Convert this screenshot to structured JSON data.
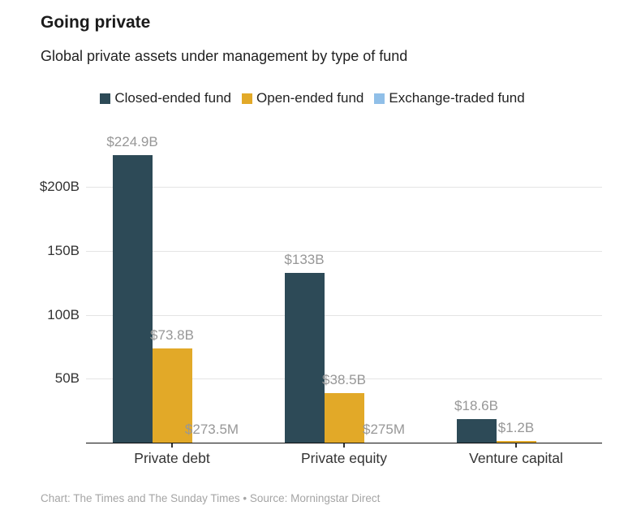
{
  "page": {
    "title": "Going private",
    "subtitle": "Global private assets under management by type of fund",
    "footer": "Chart: The Times and The Sunday Times • Source: Morningstar Direct"
  },
  "colors": {
    "closed_ended_fund": "#2d4a57",
    "open_ended_fund": "#e2a928",
    "exchange_traded_fund": "#90bfe8",
    "gridline": "#e4e4e4",
    "axis_line": "#0f0f0f",
    "value_label": "#979797",
    "axis_label": "#333333",
    "footer_text": "#a5a5a5"
  },
  "chart_data": {
    "type": "bar",
    "title": "Going private",
    "subtitle": "Global private assets under management by type of fund",
    "categories": [
      "Private debt",
      "Private equity",
      "Venture capital"
    ],
    "series": [
      {
        "name": "Closed-ended fund",
        "color": "#2d4a57",
        "values": [
          224.9,
          133,
          18.6
        ],
        "labels": [
          "$224.9B",
          "$133B",
          "$18.6B"
        ]
      },
      {
        "name": "Open-ended fund",
        "color": "#e2a928",
        "values": [
          73.8,
          38.5,
          1.2
        ],
        "labels": [
          "$73.8B",
          "$38.5B",
          "$1.2B"
        ]
      },
      {
        "name": "Exchange-traded fund",
        "color": "#90bfe8",
        "values": [
          0.2735,
          0.275,
          null
        ],
        "labels": [
          "$273.5M",
          "$275M",
          null
        ]
      }
    ],
    "yticks": [
      {
        "value": 200,
        "label": "$200B"
      },
      {
        "value": 150,
        "label": "150B"
      },
      {
        "value": 100,
        "label": "100B"
      },
      {
        "value": 50,
        "label": "50B"
      }
    ],
    "ylim": [
      0,
      238
    ],
    "xlabel": "",
    "ylabel": "",
    "grid": true,
    "legend_position": "top-center"
  }
}
